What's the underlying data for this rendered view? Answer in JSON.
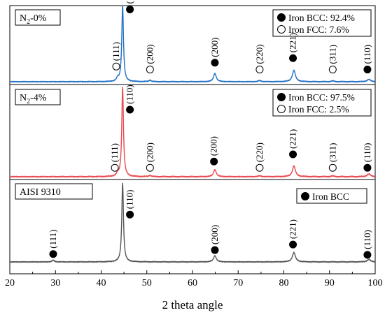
{
  "chart_data": {
    "type": "line",
    "xlabel": "2 theta angle",
    "ylabel": "",
    "xlim": [
      20,
      100
    ],
    "xticks": [
      20,
      30,
      40,
      50,
      60,
      70,
      80,
      90,
      100
    ],
    "grid": false,
    "panels": [
      {
        "label": "N",
        "label_sub": "2",
        "label_rest": "-0%",
        "color": "#1f6fc5",
        "legend": [
          {
            "marker": "filled-circle",
            "text": "Iron BCC: 92.4%"
          },
          {
            "marker": "open-circle",
            "text": "Iron FCC: 7.6%"
          }
        ],
        "peaks": [
          {
            "x": 43.6,
            "h": 0.04,
            "w": 0.28
          },
          {
            "x": 44.7,
            "h": 1.0,
            "w": 0.22
          },
          {
            "x": 50.7,
            "h": 0.02,
            "w": 0.3
          },
          {
            "x": 64.9,
            "h": 0.11,
            "w": 0.35
          },
          {
            "x": 74.7,
            "h": 0.015,
            "w": 0.35
          },
          {
            "x": 82.2,
            "h": 0.15,
            "w": 0.4
          },
          {
            "x": 90.7,
            "h": 0.01,
            "w": 0.4
          },
          {
            "x": 98.6,
            "h": 0.03,
            "w": 0.45
          }
        ],
        "markers": [
          {
            "type": "open",
            "label": "(111)",
            "x": 43.3,
            "level": 0.2
          },
          {
            "type": "filled",
            "label": "(110)",
            "x": 46.3,
            "level": 0.95
          },
          {
            "type": "open",
            "label": "(200)",
            "x": 50.7,
            "level": 0.16
          },
          {
            "type": "filled",
            "label": "(200)",
            "x": 64.9,
            "level": 0.25
          },
          {
            "type": "open",
            "label": "(220)",
            "x": 74.7,
            "level": 0.16
          },
          {
            "type": "filled",
            "label": "(221)",
            "x": 82.0,
            "level": 0.31
          },
          {
            "type": "open",
            "label": "(311)",
            "x": 90.7,
            "level": 0.16
          },
          {
            "type": "filled",
            "label": "(110)",
            "x": 98.3,
            "level": 0.16
          }
        ]
      },
      {
        "label": "N",
        "label_sub": "2",
        "label_rest": "-4%",
        "color": "#e8474f",
        "legend": [
          {
            "marker": "filled-circle",
            "text": "Iron BCC: 97.5%"
          },
          {
            "marker": "open-circle",
            "text": "Iron FCC: 2.5%"
          }
        ],
        "peaks": [
          {
            "x": 43.6,
            "h": 0.03,
            "w": 0.28
          },
          {
            "x": 44.7,
            "h": 1.0,
            "w": 0.22
          },
          {
            "x": 50.7,
            "h": 0.015,
            "w": 0.3
          },
          {
            "x": 64.9,
            "h": 0.08,
            "w": 0.35
          },
          {
            "x": 74.7,
            "h": 0.01,
            "w": 0.35
          },
          {
            "x": 82.2,
            "h": 0.12,
            "w": 0.4
          },
          {
            "x": 90.7,
            "h": 0.008,
            "w": 0.4
          },
          {
            "x": 98.6,
            "h": 0.03,
            "w": 0.45
          }
        ],
        "markers": [
          {
            "type": "open",
            "label": "(111)",
            "x": 43.0,
            "level": 0.1
          },
          {
            "type": "filled",
            "label": "(110)",
            "x": 46.3,
            "level": 0.75
          },
          {
            "type": "open",
            "label": "(200)",
            "x": 50.7,
            "level": 0.1
          },
          {
            "type": "filled",
            "label": "(200)",
            "x": 64.7,
            "level": 0.17
          },
          {
            "type": "open",
            "label": "(220)",
            "x": 74.7,
            "level": 0.1
          },
          {
            "type": "filled",
            "label": "(221)",
            "x": 82.0,
            "level": 0.25
          },
          {
            "type": "open",
            "label": "(311)",
            "x": 90.7,
            "level": 0.1
          },
          {
            "type": "filled",
            "label": "(110)",
            "x": 98.3,
            "level": 0.1
          }
        ]
      },
      {
        "label": "AISI 9310",
        "label_sub": "",
        "label_rest": "",
        "color": "#555555",
        "legend": [
          {
            "marker": "filled-circle",
            "text": "Iron BCC"
          }
        ],
        "peaks": [
          {
            "x": 29.5,
            "h": 0.02,
            "w": 0.3
          },
          {
            "x": 44.7,
            "h": 1.0,
            "w": 0.22
          },
          {
            "x": 64.9,
            "h": 0.08,
            "w": 0.35
          },
          {
            "x": 82.2,
            "h": 0.12,
            "w": 0.4
          },
          {
            "x": 98.6,
            "h": 0.03,
            "w": 0.45
          }
        ],
        "markers": [
          {
            "type": "filled",
            "label": "(111)",
            "x": 29.5,
            "level": 0.1
          },
          {
            "type": "filled",
            "label": "(110)",
            "x": 46.3,
            "level": 0.6
          },
          {
            "type": "filled",
            "label": "(200)",
            "x": 64.9,
            "level": 0.15
          },
          {
            "type": "filled",
            "label": "(221)",
            "x": 82.0,
            "level": 0.22
          },
          {
            "type": "filled",
            "label": "(110)",
            "x": 98.3,
            "level": 0.09
          }
        ]
      }
    ]
  }
}
